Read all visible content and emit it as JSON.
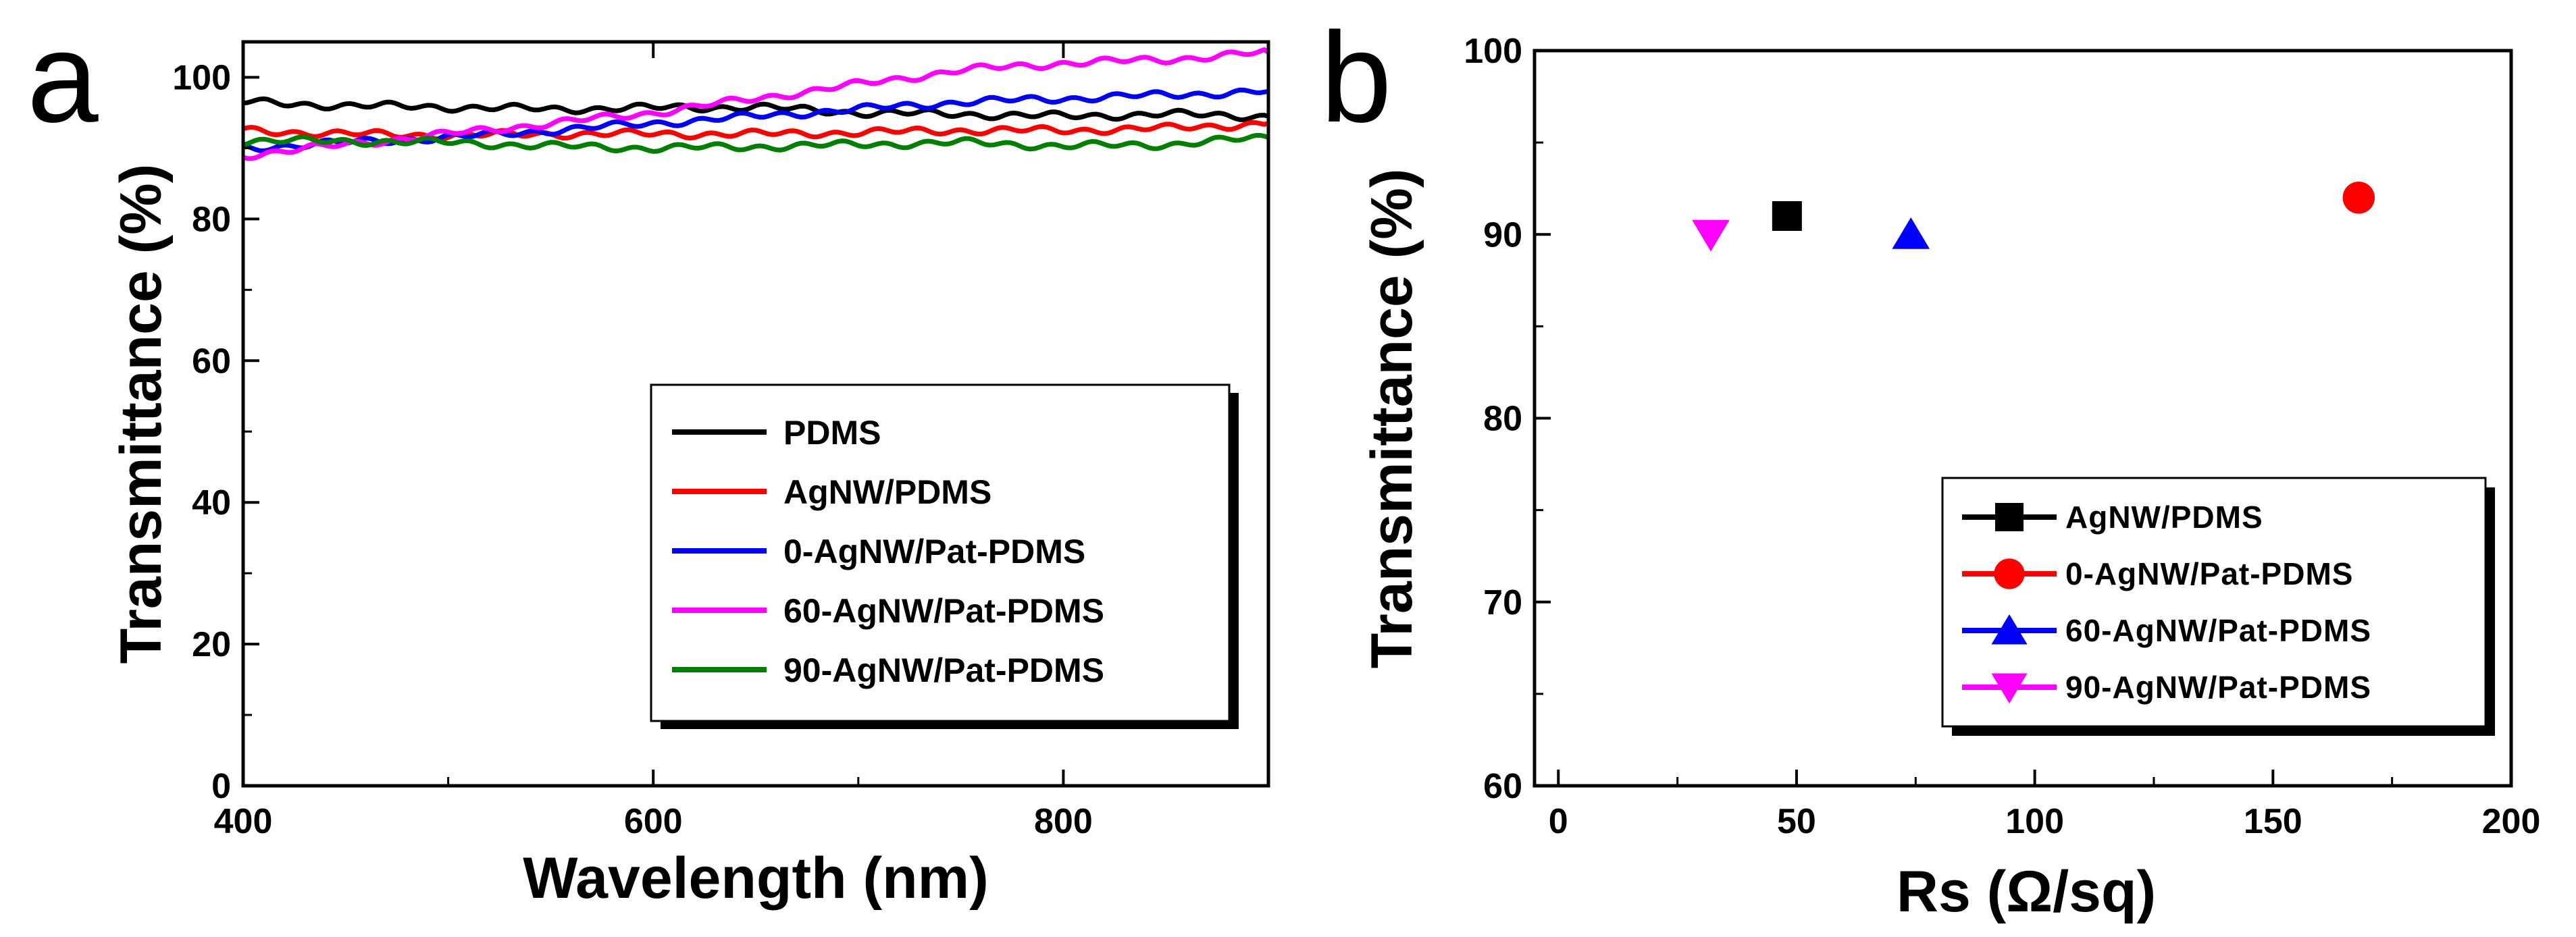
{
  "chart_data": [
    {
      "type": "line",
      "panel_label": "a",
      "xlabel": "Wavelength (nm)",
      "ylabel": "Transmittance (%)",
      "xlim": [
        400,
        900
      ],
      "ylim": [
        0,
        105
      ],
      "xticks": [
        400,
        600,
        800
      ],
      "yticks": [
        0,
        20,
        40,
        60,
        80,
        100
      ],
      "legend_position": "center-right",
      "x": [
        400,
        450,
        500,
        550,
        600,
        650,
        700,
        750,
        800,
        850,
        900
      ],
      "series": [
        {
          "name": "PDMS",
          "color": "#000000",
          "values": [
            96.5,
            96.0,
            95.8,
            95.5,
            95.7,
            95.8,
            95.0,
            94.8,
            94.5,
            94.8,
            94.5
          ]
        },
        {
          "name": "AgNW/PDMS",
          "color": "#ff0000",
          "values": [
            92.5,
            92.0,
            91.8,
            92.0,
            92.0,
            92.0,
            92.2,
            92.5,
            92.5,
            92.8,
            93.5
          ]
        },
        {
          "name": "0-AgNW/Pat-PDMS",
          "color": "#0000ff",
          "values": [
            90.0,
            90.8,
            91.5,
            92.5,
            93.5,
            94.5,
            95.5,
            96.5,
            97.0,
            97.5,
            98.0
          ]
        },
        {
          "name": "60-AgNW/Pat-PDMS",
          "color": "#ff00ff",
          "values": [
            89.0,
            90.5,
            92.0,
            93.5,
            95.0,
            97.0,
            99.0,
            101.0,
            102.0,
            102.5,
            103.5
          ]
        },
        {
          "name": "90-AgNW/Pat-PDMS",
          "color": "#008000",
          "values": [
            91.0,
            91.0,
            90.8,
            90.3,
            90.0,
            90.2,
            90.5,
            90.8,
            90.3,
            90.5,
            91.5
          ]
        }
      ]
    },
    {
      "type": "scatter",
      "panel_label": "b",
      "xlabel": "Rs (Ω/sq)",
      "ylabel": "Transmittance (%)",
      "xlim": [
        -5,
        200
      ],
      "ylim": [
        60,
        100
      ],
      "xticks": [
        0,
        50,
        100,
        150,
        200
      ],
      "yticks": [
        60,
        70,
        80,
        90,
        100
      ],
      "legend_position": "bottom-right",
      "series": [
        {
          "name": "AgNW/PDMS",
          "marker": "square",
          "color": "#000000",
          "x": 48,
          "y": 91
        },
        {
          "name": "0-AgNW/Pat-PDMS",
          "marker": "circle",
          "color": "#ff0000",
          "x": 168,
          "y": 92
        },
        {
          "name": "60-AgNW/Pat-PDMS",
          "marker": "triangle-up",
          "color": "#0000ff",
          "x": 74,
          "y": 90
        },
        {
          "name": "90-AgNW/Pat-PDMS",
          "marker": "triangle-down",
          "color": "#ff00ff",
          "x": 32,
          "y": 90
        }
      ]
    }
  ]
}
